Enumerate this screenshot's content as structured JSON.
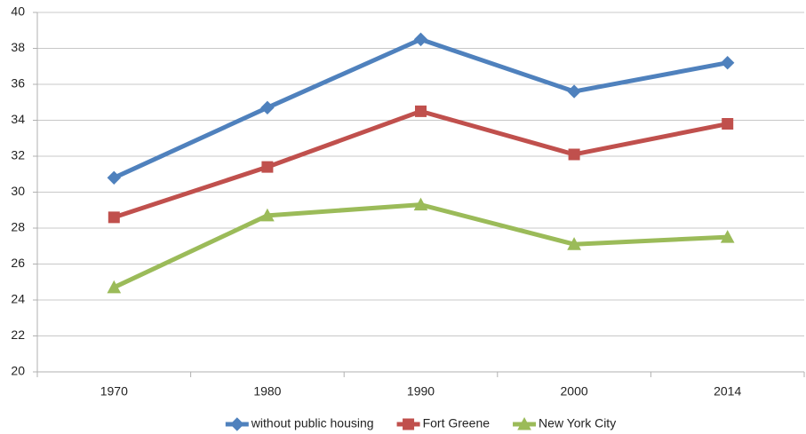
{
  "chart_data": {
    "type": "line",
    "categories": [
      "1970",
      "1980",
      "1990",
      "2000",
      "2014"
    ],
    "series": [
      {
        "name": "without public housing",
        "color": "#4f81bd",
        "marker": "diamond",
        "values": [
          30.8,
          34.7,
          38.5,
          35.6,
          37.2
        ]
      },
      {
        "name": "Fort Greene",
        "color": "#c0504d",
        "marker": "square",
        "values": [
          28.6,
          31.4,
          34.5,
          32.1,
          33.8
        ]
      },
      {
        "name": "New York City",
        "color": "#9bbb59",
        "marker": "triangle",
        "values": [
          24.7,
          28.7,
          29.3,
          27.1,
          27.5
        ]
      }
    ],
    "ylim": [
      20,
      40
    ],
    "yticks": [
      20,
      22,
      24,
      26,
      28,
      30,
      32,
      34,
      36,
      38,
      40
    ],
    "grid": true,
    "legend": "bottom"
  }
}
